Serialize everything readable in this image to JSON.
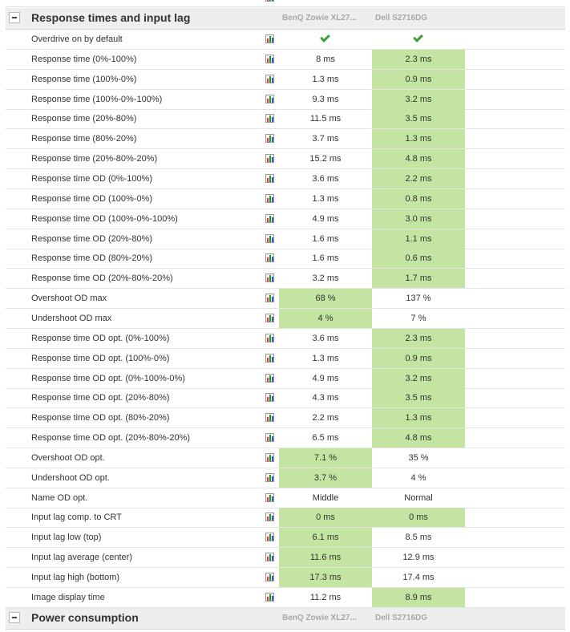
{
  "sections": [
    {
      "title": "Response times and input lag",
      "columns": [
        "BenQ Zowie XL27...",
        "Dell S2716DG"
      ]
    },
    {
      "title": "Power consumption",
      "columns": [
        "BenQ Zowie XL27...",
        "Dell S2716DG"
      ]
    }
  ],
  "highlight_color": "#c3e5a1",
  "rows": [
    {
      "label": "Overdrive on by default",
      "v1": "",
      "v2": "",
      "check1": true,
      "check2": true,
      "win": ""
    },
    {
      "label": "Response time (0%-100%)",
      "v1": "8 ms",
      "v2": "2.3 ms",
      "win": "2"
    },
    {
      "label": "Response time (100%-0%)",
      "v1": "1.3 ms",
      "v2": "0.9 ms",
      "win": "2"
    },
    {
      "label": "Response time (100%-0%-100%)",
      "v1": "9.3 ms",
      "v2": "3.2 ms",
      "win": "2"
    },
    {
      "label": "Response time (20%-80%)",
      "v1": "11.5 ms",
      "v2": "3.5 ms",
      "win": "2"
    },
    {
      "label": "Response time (80%-20%)",
      "v1": "3.7 ms",
      "v2": "1.3 ms",
      "win": "2"
    },
    {
      "label": "Response time (20%-80%-20%)",
      "v1": "15.2 ms",
      "v2": "4.8 ms",
      "win": "2"
    },
    {
      "label": "Response time OD (0%-100%)",
      "v1": "3.6 ms",
      "v2": "2.2 ms",
      "win": "2"
    },
    {
      "label": "Response time OD (100%-0%)",
      "v1": "1.3 ms",
      "v2": "0.8 ms",
      "win": "2"
    },
    {
      "label": "Response time OD (100%-0%-100%)",
      "v1": "4.9 ms",
      "v2": "3.0 ms",
      "win": "2"
    },
    {
      "label": "Response time OD (20%-80%)",
      "v1": "1.6 ms",
      "v2": "1.1 ms",
      "win": "2"
    },
    {
      "label": "Response time OD (80%-20%)",
      "v1": "1.6 ms",
      "v2": "0.6 ms",
      "win": "2"
    },
    {
      "label": "Response time OD (20%-80%-20%)",
      "v1": "3.2 ms",
      "v2": "1.7 ms",
      "win": "2"
    },
    {
      "label": "Overshoot OD max",
      "v1": "68 %",
      "v2": "137 %",
      "win": "1"
    },
    {
      "label": "Undershoot OD max",
      "v1": "4 %",
      "v2": "7 %",
      "win": "1"
    },
    {
      "label": "Response time OD opt. (0%-100%)",
      "v1": "3.6 ms",
      "v2": "2.3 ms",
      "win": "2"
    },
    {
      "label": "Response time OD opt. (100%-0%)",
      "v1": "1.3 ms",
      "v2": "0.9 ms",
      "win": "2"
    },
    {
      "label": "Response time OD opt. (0%-100%-0%)",
      "v1": "4.9 ms",
      "v2": "3.2 ms",
      "win": "2"
    },
    {
      "label": "Response time OD opt. (20%-80%)",
      "v1": "4.3 ms",
      "v2": "3.5 ms",
      "win": "2"
    },
    {
      "label": "Response time OD opt. (80%-20%)",
      "v1": "2.2 ms",
      "v2": "1.3 ms",
      "win": "2"
    },
    {
      "label": "Response time OD opt. (20%-80%-20%)",
      "v1": "6.5 ms",
      "v2": "4.8 ms",
      "win": "2"
    },
    {
      "label": "Overshoot OD opt.",
      "v1": "7.1 %",
      "v2": "35 %",
      "win": "1"
    },
    {
      "label": "Undershoot OD opt.",
      "v1": "3.7 %",
      "v2": "4 %",
      "win": "1"
    },
    {
      "label": "Name OD opt.",
      "v1": "Middle",
      "v2": "Normal",
      "win": ""
    },
    {
      "label": "Input lag comp. to CRT",
      "v1": "0 ms",
      "v2": "0 ms",
      "win": "both"
    },
    {
      "label": "Input lag low (top)",
      "v1": "6.1 ms",
      "v2": "8.5 ms",
      "win": "1"
    },
    {
      "label": "Input lag average (center)",
      "v1": "11.6 ms",
      "v2": "12.9 ms",
      "win": "1"
    },
    {
      "label": "Input lag high (bottom)",
      "v1": "17.3 ms",
      "v2": "17.4 ms",
      "win": "1"
    },
    {
      "label": "Image display time",
      "v1": "11.2 ms",
      "v2": "8.9 ms",
      "win": "2"
    }
  ]
}
